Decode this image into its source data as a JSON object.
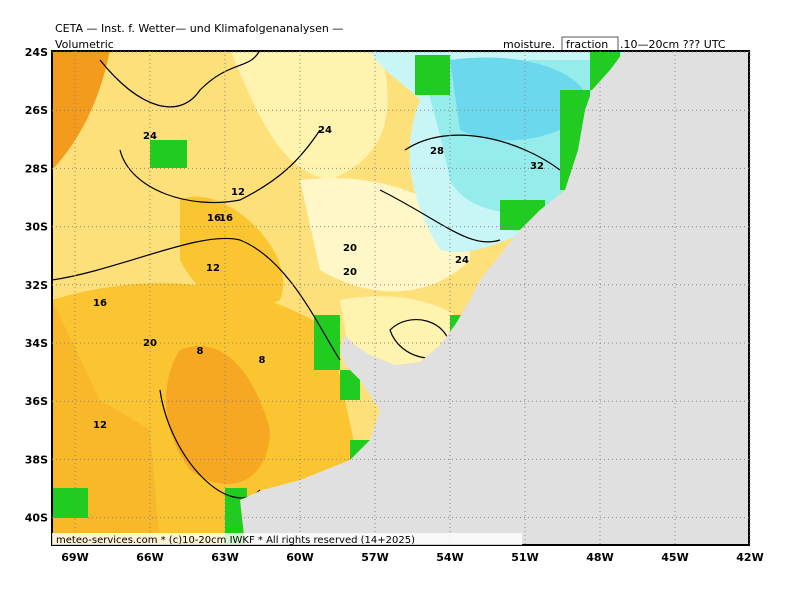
{
  "header": {
    "title": "CETA — Inst. f. Wetter— und Klimafolgenanalysen —",
    "subtitle": "Volumetric",
    "variable": "moisture.",
    "unit": "fraction",
    "level": ".10—20cm ??? UTC"
  },
  "lat_labels": [
    "24S",
    "26S",
    "28S",
    "30S",
    "32S",
    "34S",
    "36S",
    "38S",
    "40S"
  ],
  "lon_labels": [
    "69W",
    "66W",
    "63W",
    "60W",
    "57W",
    "54W",
    "51W",
    "48W",
    "45W",
    "42W"
  ],
  "contour_labels": [
    "24",
    "24",
    "28",
    "32",
    "12",
    "16",
    "16",
    "20",
    "20",
    "24",
    "12",
    "16",
    "20",
    "8",
    "8",
    "12"
  ],
  "footer": "meteo-services.com * (c)10-20cm IWKF * All rights reserved (14+2025)"
}
